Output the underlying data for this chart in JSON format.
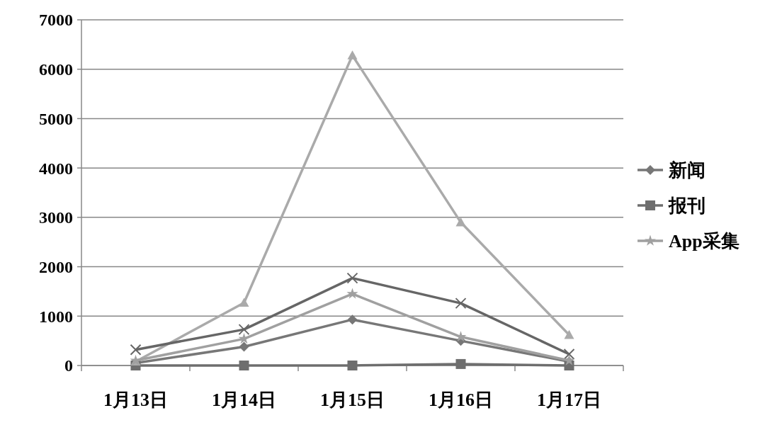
{
  "chart_data": {
    "type": "line",
    "categories": [
      "1月13日",
      "1月14日",
      "1月15日",
      "1月16日",
      "1月17日"
    ],
    "series": [
      {
        "name": "新闻",
        "color": "#777777",
        "marker": "diamond",
        "values": [
          50,
          380,
          930,
          500,
          80
        ]
      },
      {
        "name": "报刊",
        "color": "#6e6e6e",
        "marker": "square",
        "values": [
          0,
          0,
          0,
          30,
          0
        ]
      },
      {
        "color": "#aaaaaa",
        "marker": "triangle",
        "values": [
          80,
          1270,
          6280,
          2900,
          620
        ]
      },
      {
        "color": "#666666",
        "marker": "cross",
        "values": [
          320,
          730,
          1770,
          1260,
          230
        ]
      },
      {
        "name": "App采集",
        "color": "#a0a0a0",
        "marker": "star",
        "values": [
          100,
          540,
          1450,
          580,
          100
        ]
      }
    ],
    "ylim": [
      0,
      7000
    ],
    "yticks": [
      0,
      1000,
      2000,
      3000,
      4000,
      5000,
      6000,
      7000
    ],
    "grid": "y",
    "legend": "right"
  }
}
